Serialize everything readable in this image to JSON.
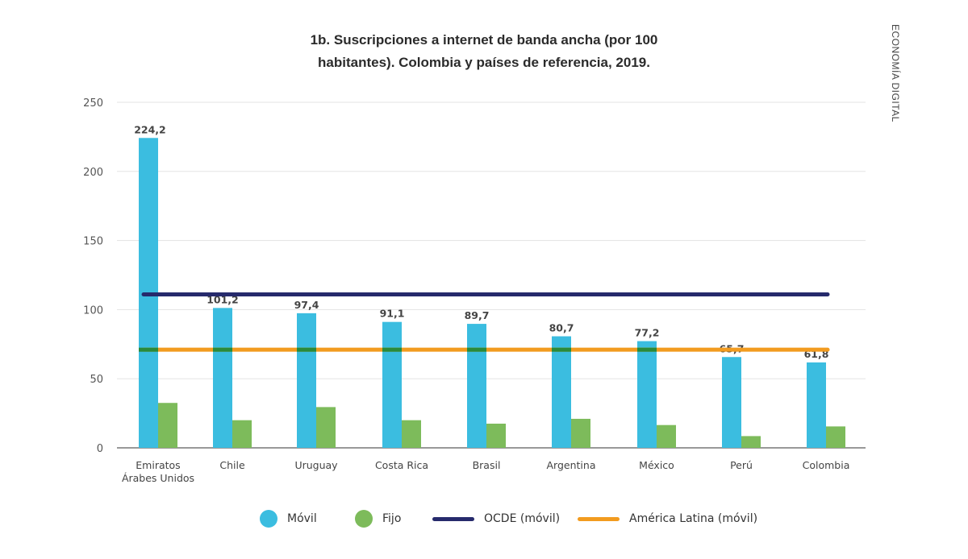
{
  "side_label": "ECONOMÍA DIGITAL",
  "chart_data": {
    "type": "bar",
    "title_line1": "1b. Suscripciones a internet de banda ancha (por 100",
    "title_line2": "habitantes). Colombia y países de referencia, 2019.",
    "categories": [
      [
        "Emiratos",
        "Árabes Unidos"
      ],
      [
        "Chile"
      ],
      [
        "Uruguay"
      ],
      [
        "Costa Rica"
      ],
      [
        "Brasil"
      ],
      [
        "Argentina"
      ],
      [
        "México"
      ],
      [
        "Perú"
      ],
      [
        "Colombia"
      ]
    ],
    "series": [
      {
        "name": "Móvil",
        "color": "#3bbde0",
        "values": [
          224.2,
          101.2,
          97.4,
          91.1,
          89.7,
          80.7,
          77.2,
          65.7,
          61.8
        ],
        "labels": [
          "224,2",
          "101,2",
          "97,4",
          "91,1",
          "89,7",
          "80,7",
          "77,2",
          "65,7",
          "61,8"
        ]
      },
      {
        "name": "Fijo",
        "color": "#7dbb5b",
        "values": [
          32.5,
          20,
          29.5,
          20,
          17.5,
          21,
          16.5,
          8.5,
          15.5
        ]
      }
    ],
    "reference_lines": [
      {
        "name": "OCDE (móvil)",
        "color": "#262a6c",
        "value": 111
      },
      {
        "name": "América Latina (móvil)",
        "color": "#f29b1f",
        "value": 71
      }
    ],
    "overlap_color": "#2a8a3a",
    "ylim": [
      0,
      250
    ],
    "yticks": [
      0,
      50,
      100,
      150,
      200,
      250
    ],
    "grid": true,
    "legend_position": "bottom"
  }
}
